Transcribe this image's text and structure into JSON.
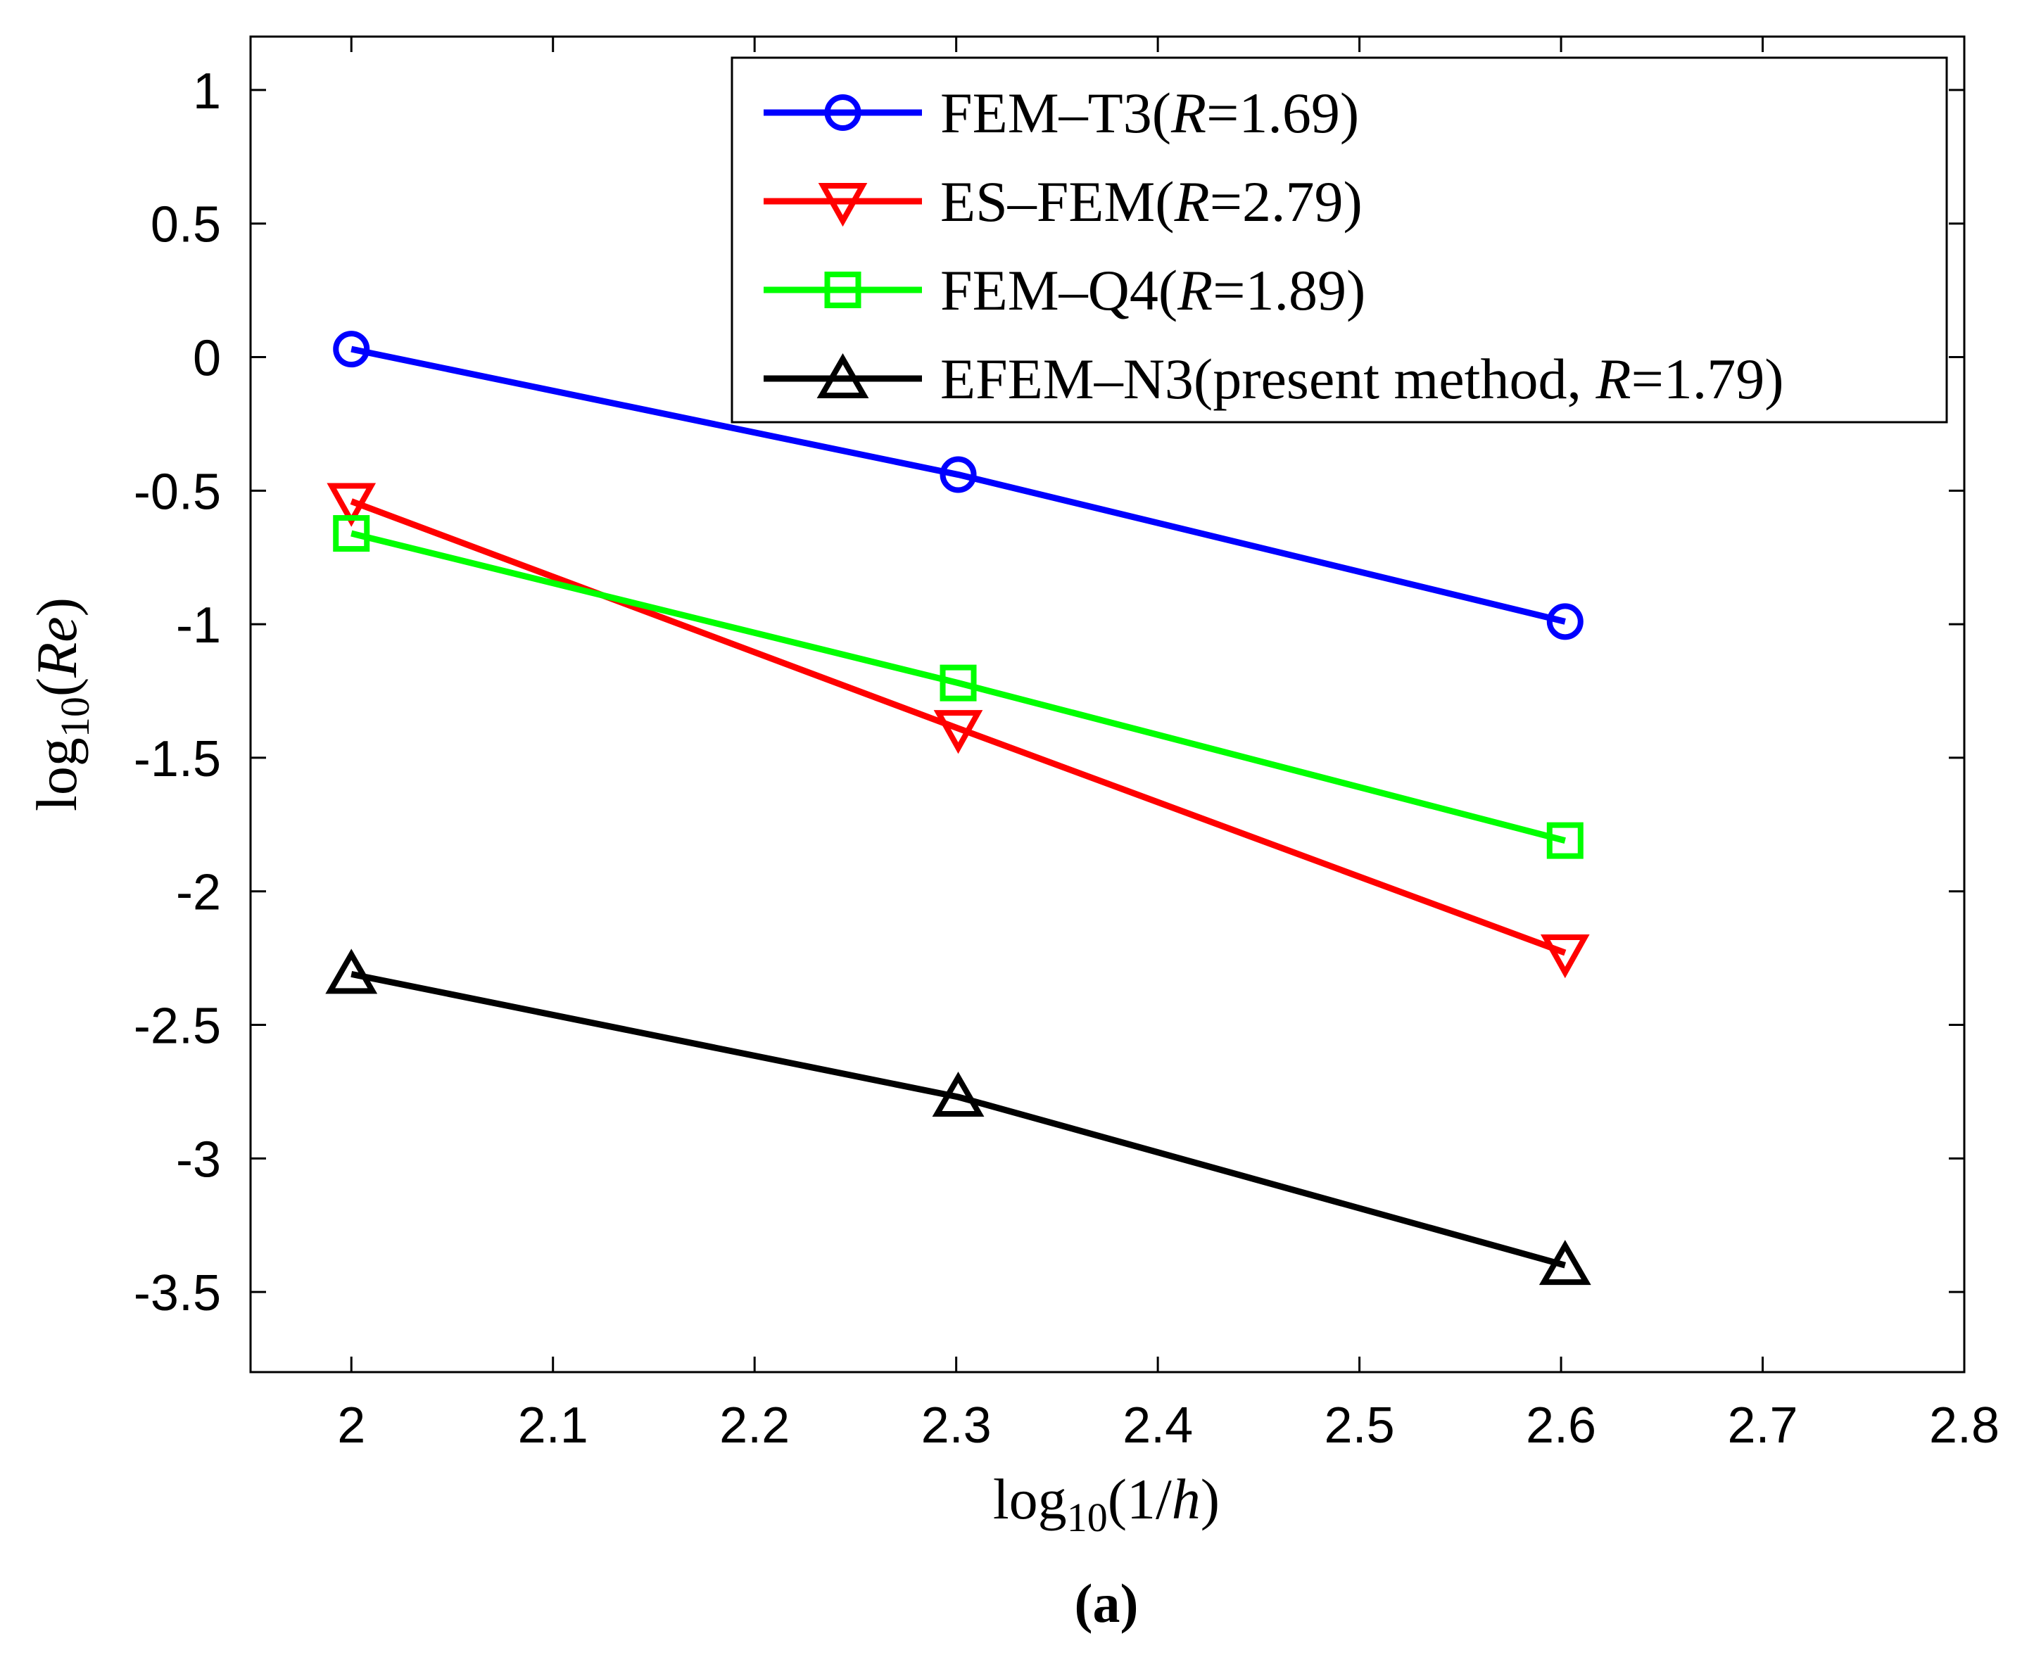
{
  "chart_data": {
    "type": "line",
    "xlabel": {
      "pre": "log",
      "sub": "10",
      "open": "(1/",
      "var": "h",
      "close": ")"
    },
    "ylabel": {
      "pre": "log",
      "sub": "10",
      "open": "(",
      "var": "Re",
      "close": ")"
    },
    "caption": "(a)",
    "xlim": [
      1.95,
      2.8
    ],
    "ylim": [
      -3.8,
      1.2
    ],
    "x_ticks": [
      2,
      2.1,
      2.2,
      2.3,
      2.4,
      2.5,
      2.6,
      2.7,
      2.8
    ],
    "x_tick_labels": [
      "2",
      "2.1",
      "2.2",
      "2.3",
      "2.4",
      "2.5",
      "2.6",
      "2.7",
      "2.8"
    ],
    "y_ticks": [
      1,
      0.5,
      0,
      -0.5,
      -1,
      -1.5,
      -2,
      -2.5,
      -3,
      -3.5
    ],
    "y_tick_labels": [
      "1",
      "0.5",
      "0",
      "-0.5",
      "-1",
      "-1.5",
      "-2",
      "-2.5",
      "-3",
      "-3.5"
    ],
    "grid": false,
    "legend_position": "top-right",
    "x": [
      2.0,
      2.301,
      2.602
    ],
    "series": [
      {
        "name": "FEM–T3",
        "label_pre": "FEM–T3(",
        "rate": "1.69",
        "color": "#0000ff",
        "marker": "circle",
        "values": [
          0.03,
          -0.44,
          -0.99
        ]
      },
      {
        "name": "ES–FEM",
        "label_pre": "ES–FEM(",
        "rate": "2.79",
        "color": "#ff0000",
        "marker": "triangle-down",
        "values": [
          -0.54,
          -1.39,
          -2.23
        ]
      },
      {
        "name": "FEM–Q4",
        "label_pre": "FEM–Q4(",
        "rate": "1.89",
        "color": "#00ff00",
        "marker": "square",
        "values": [
          -0.66,
          -1.22,
          -1.81
        ]
      },
      {
        "name": "EFEM–N3",
        "label_pre": "EFEM–N3(present method, ",
        "rate": "1.79",
        "color": "#000000",
        "marker": "triangle-up",
        "values": [
          -2.31,
          -2.77,
          -3.4
        ]
      }
    ],
    "legend_rate_symbol": "R",
    "legend_eq": "=",
    "legend_close": ")"
  }
}
